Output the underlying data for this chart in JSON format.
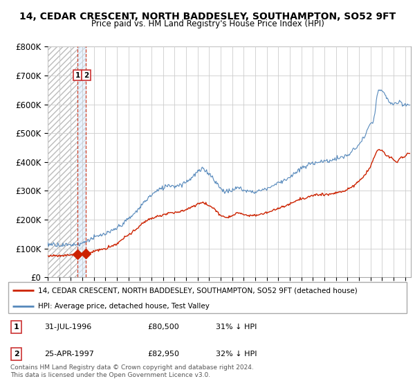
{
  "title_line1": "14, CEDAR CRESCENT, NORTH BADDESLEY, SOUTHAMPTON, SO52 9FT",
  "title_line2": "Price paid vs. HM Land Registry's House Price Index (HPI)",
  "ylim": [
    0,
    800000
  ],
  "yticks": [
    0,
    100000,
    200000,
    300000,
    400000,
    500000,
    600000,
    700000,
    800000
  ],
  "ytick_labels": [
    "£0",
    "£100K",
    "£200K",
    "£300K",
    "£400K",
    "£500K",
    "£600K",
    "£700K",
    "£800K"
  ],
  "xlim_start": 1994.0,
  "xlim_end": 2025.5,
  "hpi_color": "#5588bb",
  "price_color": "#cc2200",
  "marker_color": "#cc2200",
  "background_color": "#ffffff",
  "grid_color": "#cccccc",
  "legend_label_red": "14, CEDAR CRESCENT, NORTH BADDESLEY, SOUTHAMPTON, SO52 9FT (detached house)",
  "legend_label_blue": "HPI: Average price, detached house, Test Valley",
  "table_rows": [
    {
      "num": "1",
      "date": "31-JUL-1996",
      "price": "£80,500",
      "note": "31% ↓ HPI"
    },
    {
      "num": "2",
      "date": "25-APR-1997",
      "price": "£82,950",
      "note": "32% ↓ HPI"
    }
  ],
  "footnote": "Contains HM Land Registry data © Crown copyright and database right 2024.\nThis data is licensed under the Open Government Licence v3.0.",
  "sale1_x": 1996.58,
  "sale1_y": 80500,
  "sale2_x": 1997.32,
  "sale2_y": 82950,
  "hpi_anchors": [
    [
      1994.0,
      115000
    ],
    [
      1994.5,
      116000
    ],
    [
      1995.0,
      113000
    ],
    [
      1995.5,
      112000
    ],
    [
      1996.0,
      114000
    ],
    [
      1996.5,
      116000
    ],
    [
      1997.0,
      119000
    ],
    [
      1997.5,
      130000
    ],
    [
      1998.0,
      138000
    ],
    [
      1998.5,
      145000
    ],
    [
      1999.0,
      150000
    ],
    [
      1999.5,
      158000
    ],
    [
      2000.0,
      170000
    ],
    [
      2000.5,
      185000
    ],
    [
      2001.0,
      200000
    ],
    [
      2001.5,
      218000
    ],
    [
      2002.0,
      240000
    ],
    [
      2002.5,
      265000
    ],
    [
      2003.0,
      285000
    ],
    [
      2003.5,
      300000
    ],
    [
      2004.0,
      310000
    ],
    [
      2004.5,
      320000
    ],
    [
      2005.0,
      315000
    ],
    [
      2005.5,
      320000
    ],
    [
      2006.0,
      330000
    ],
    [
      2006.5,
      345000
    ],
    [
      2007.0,
      365000
    ],
    [
      2007.5,
      375000
    ],
    [
      2008.0,
      360000
    ],
    [
      2008.5,
      335000
    ],
    [
      2009.0,
      305000
    ],
    [
      2009.5,
      295000
    ],
    [
      2010.0,
      300000
    ],
    [
      2010.5,
      310000
    ],
    [
      2011.0,
      300000
    ],
    [
      2011.5,
      295000
    ],
    [
      2012.0,
      295000
    ],
    [
      2012.5,
      300000
    ],
    [
      2013.0,
      305000
    ],
    [
      2013.5,
      315000
    ],
    [
      2014.0,
      325000
    ],
    [
      2014.5,
      335000
    ],
    [
      2015.0,
      345000
    ],
    [
      2015.5,
      360000
    ],
    [
      2016.0,
      375000
    ],
    [
      2016.5,
      385000
    ],
    [
      2017.0,
      395000
    ],
    [
      2017.5,
      400000
    ],
    [
      2018.0,
      400000
    ],
    [
      2018.5,
      405000
    ],
    [
      2019.0,
      410000
    ],
    [
      2019.5,
      415000
    ],
    [
      2020.0,
      420000
    ],
    [
      2020.5,
      440000
    ],
    [
      2021.0,
      460000
    ],
    [
      2021.5,
      490000
    ],
    [
      2022.0,
      530000
    ],
    [
      2022.3,
      545000
    ],
    [
      2022.6,
      640000
    ],
    [
      2022.9,
      650000
    ],
    [
      2023.0,
      645000
    ],
    [
      2023.3,
      630000
    ],
    [
      2023.6,
      610000
    ],
    [
      2024.0,
      600000
    ],
    [
      2024.5,
      605000
    ],
    [
      2025.0,
      595000
    ],
    [
      2025.3,
      600000
    ]
  ],
  "price_anchors": [
    [
      1994.0,
      75000
    ],
    [
      1994.5,
      76000
    ],
    [
      1995.0,
      76500
    ],
    [
      1995.5,
      77000
    ],
    [
      1996.0,
      78000
    ],
    [
      1996.58,
      80500
    ],
    [
      1997.0,
      81500
    ],
    [
      1997.32,
      82950
    ],
    [
      1997.5,
      84000
    ],
    [
      1998.0,
      90000
    ],
    [
      1998.5,
      96000
    ],
    [
      1999.0,
      100000
    ],
    [
      1999.5,
      108000
    ],
    [
      2000.0,
      118000
    ],
    [
      2000.5,
      133000
    ],
    [
      2001.0,
      148000
    ],
    [
      2001.5,
      162000
    ],
    [
      2002.0,
      180000
    ],
    [
      2002.5,
      196000
    ],
    [
      2003.0,
      205000
    ],
    [
      2003.5,
      212000
    ],
    [
      2004.0,
      218000
    ],
    [
      2004.5,
      225000
    ],
    [
      2005.0,
      225000
    ],
    [
      2005.5,
      228000
    ],
    [
      2006.0,
      235000
    ],
    [
      2006.5,
      245000
    ],
    [
      2007.0,
      256000
    ],
    [
      2007.5,
      262000
    ],
    [
      2008.0,
      250000
    ],
    [
      2008.5,
      237000
    ],
    [
      2009.0,
      215000
    ],
    [
      2009.5,
      208000
    ],
    [
      2010.0,
      215000
    ],
    [
      2010.5,
      225000
    ],
    [
      2011.0,
      218000
    ],
    [
      2011.5,
      215000
    ],
    [
      2012.0,
      215000
    ],
    [
      2012.5,
      220000
    ],
    [
      2013.0,
      225000
    ],
    [
      2013.5,
      232000
    ],
    [
      2014.0,
      240000
    ],
    [
      2014.5,
      248000
    ],
    [
      2015.0,
      255000
    ],
    [
      2015.5,
      265000
    ],
    [
      2016.0,
      272000
    ],
    [
      2016.5,
      278000
    ],
    [
      2017.0,
      284000
    ],
    [
      2017.5,
      288000
    ],
    [
      2018.0,
      288000
    ],
    [
      2018.5,
      290000
    ],
    [
      2019.0,
      295000
    ],
    [
      2019.5,
      300000
    ],
    [
      2020.0,
      305000
    ],
    [
      2020.5,
      318000
    ],
    [
      2021.0,
      335000
    ],
    [
      2021.5,
      355000
    ],
    [
      2022.0,
      385000
    ],
    [
      2022.3,
      415000
    ],
    [
      2022.5,
      435000
    ],
    [
      2022.7,
      445000
    ],
    [
      2023.0,
      440000
    ],
    [
      2023.3,
      425000
    ],
    [
      2023.7,
      415000
    ],
    [
      2024.0,
      410000
    ],
    [
      2024.3,
      400000
    ],
    [
      2024.6,
      415000
    ],
    [
      2025.0,
      420000
    ],
    [
      2025.3,
      430000
    ]
  ]
}
